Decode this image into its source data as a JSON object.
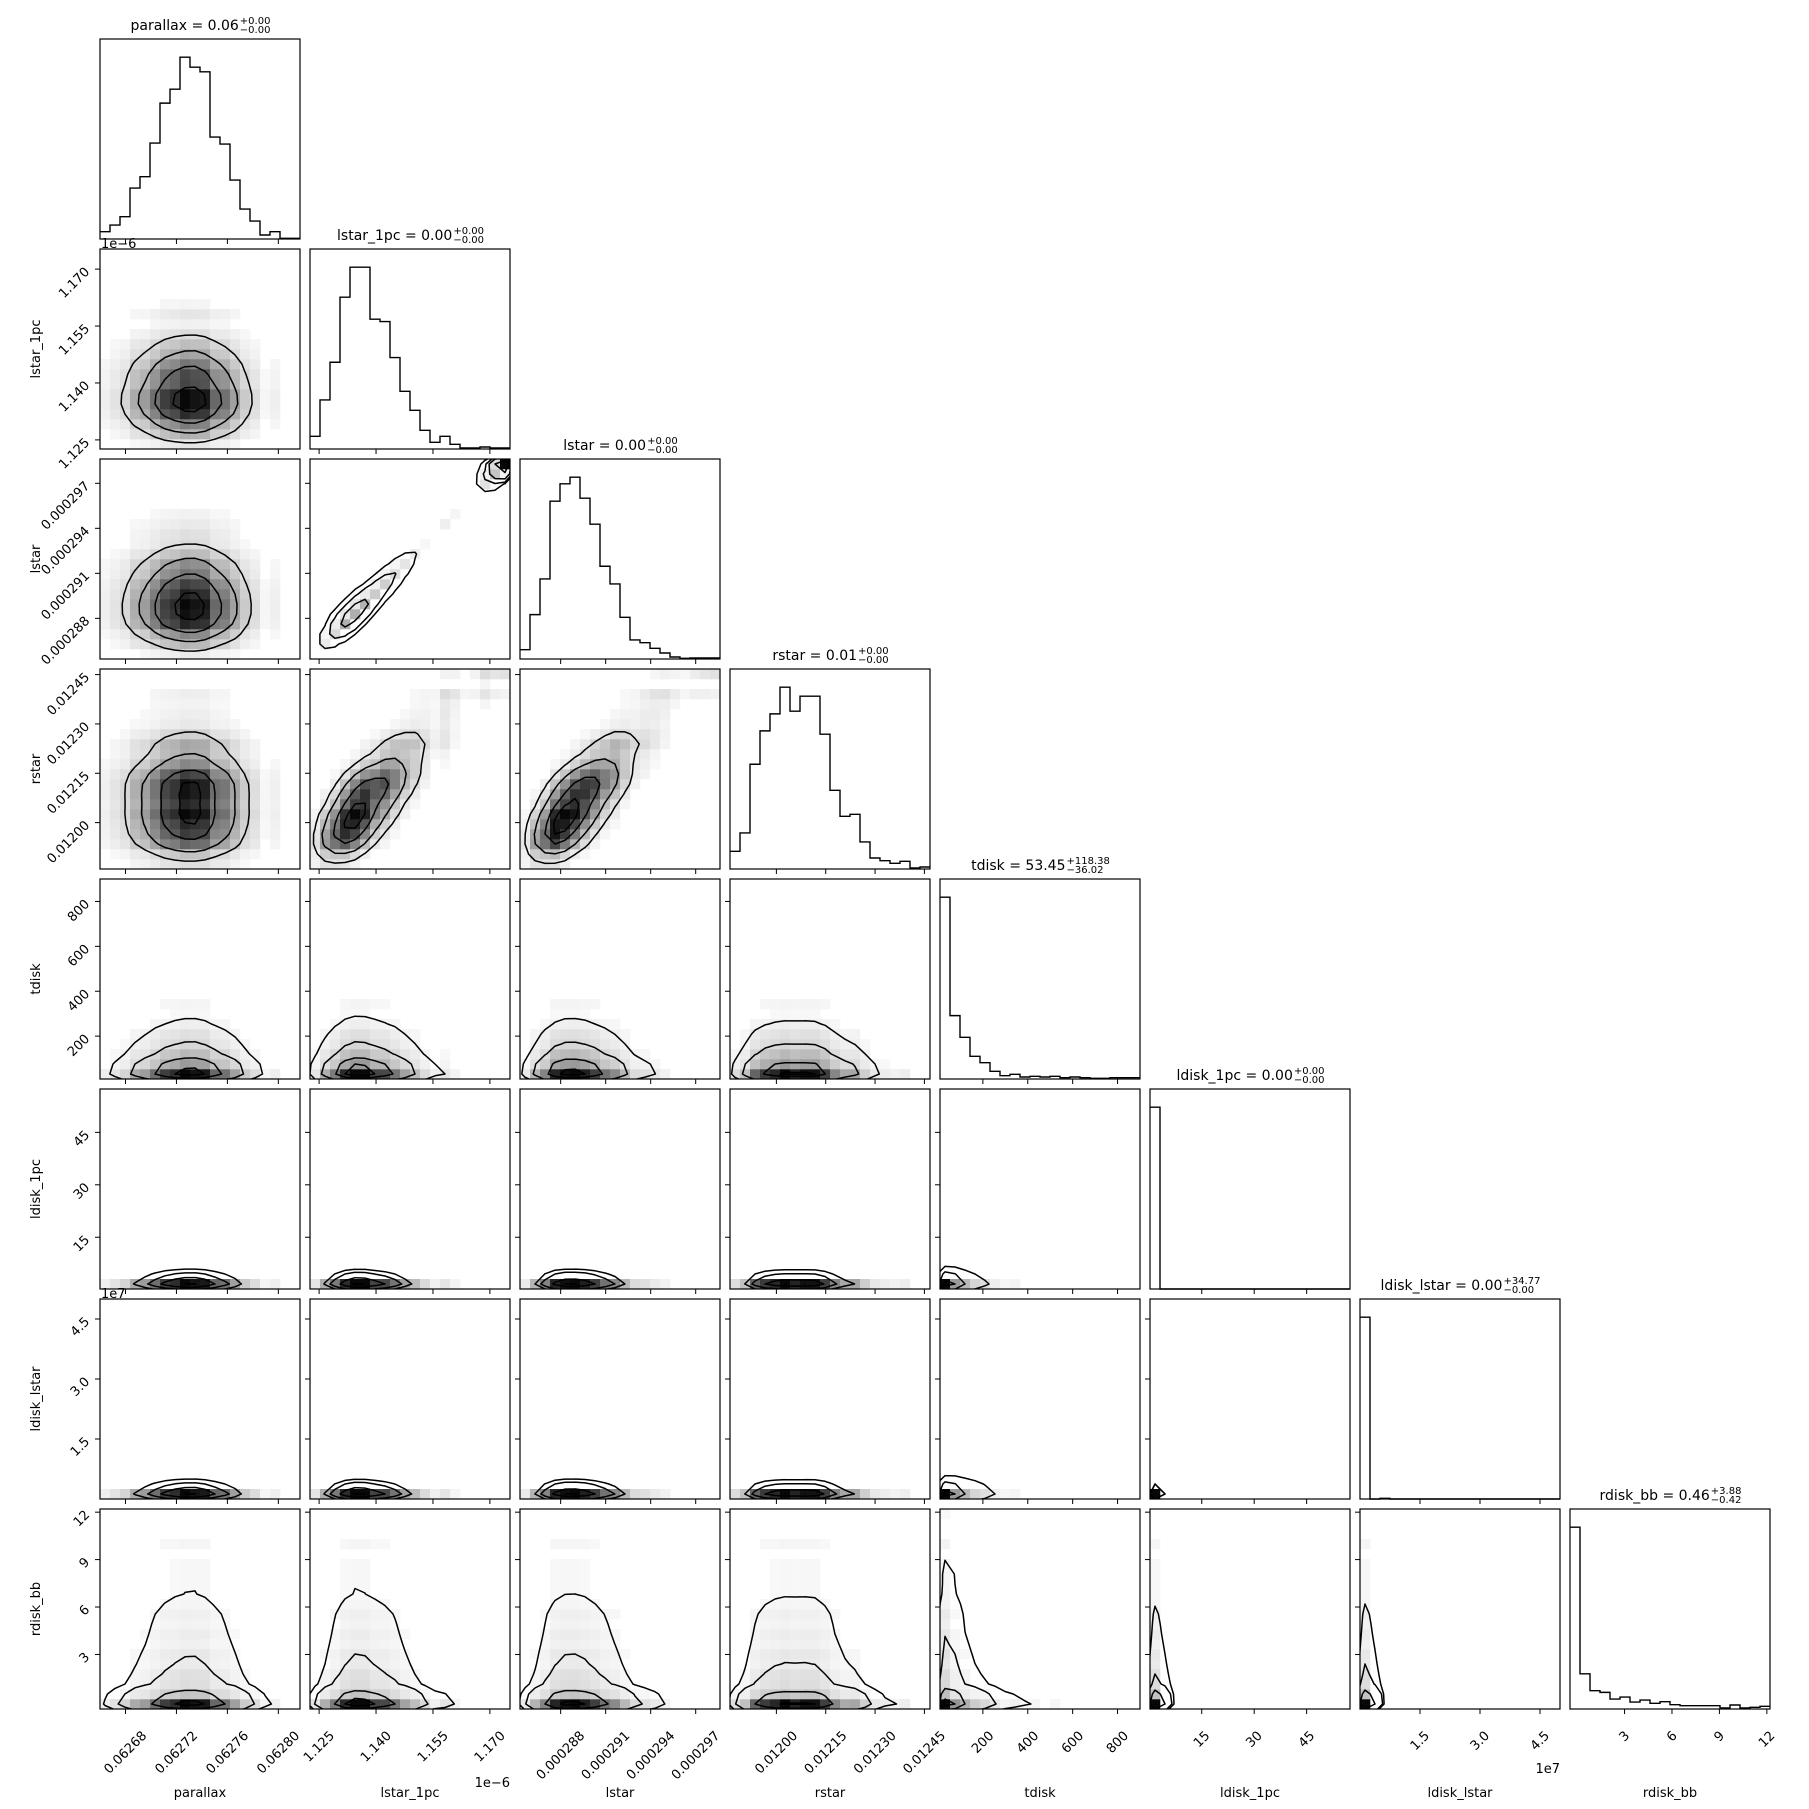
{
  "chart_data": {
    "type": "corner",
    "title": "",
    "grid": false,
    "contour_levels_sigma": [
      0.5,
      1.0,
      1.5,
      2.0
    ],
    "params": [
      {
        "name": "parallax",
        "label": "parallax",
        "title": "parallax = 0.06",
        "err_plus": "+0.00",
        "err_minus": "−0.00",
        "range": [
          0.06266,
          0.062817
        ],
        "ticks": [
          0.06268,
          0.06272,
          0.06276,
          0.0628
        ],
        "ticklabels": [
          "0.06268",
          "0.06272",
          "0.06276",
          "0.06280"
        ],
        "hist": [
          22,
          42,
          67,
          153,
          187,
          288,
          408,
          450,
          546,
          516,
          502,
          306,
          285,
          177,
          90,
          54,
          12,
          22,
          2,
          2
        ]
      },
      {
        "name": "lstar_1pc",
        "label": "lstar_1pc",
        "title": "lstar_1pc = 0.00",
        "err_plus": "+0.00",
        "err_minus": "−0.00",
        "range": [
          1.1226,
          1.1753
        ],
        "ticks": [
          1.125,
          1.14,
          1.155,
          1.17
        ],
        "ticklabels": [
          "1.125",
          "1.140",
          "1.155",
          "1.170"
        ],
        "offset": "1e−6",
        "hist": [
          38,
          147,
          260,
          455,
          545,
          545,
          389,
          382,
          274,
          173,
          116,
          56,
          20,
          38,
          14,
          3,
          3,
          6,
          3,
          3
        ]
      },
      {
        "name": "lstar",
        "label": "lstar",
        "title": "lstar = 0.00",
        "err_plus": "+0.00",
        "err_minus": "−0.00",
        "range": [
          0.00028529,
          0.00029862
        ],
        "ticks": [
          0.000288,
          0.000291,
          0.000294,
          0.000297
        ],
        "ticklabels": [
          "0.000288",
          "0.000291",
          "0.000294",
          "0.000297"
        ],
        "hist": [
          28,
          133,
          240,
          473,
          525,
          545,
          482,
          404,
          278,
          225,
          125,
          57,
          49,
          32,
          18,
          6,
          2,
          3,
          3,
          3
        ]
      },
      {
        "name": "rstar",
        "label": "rstar",
        "title": "rstar = 0.01",
        "err_plus": "+0.00",
        "err_minus": "−0.00",
        "range": [
          0.011859,
          0.012467
        ],
        "ticks": [
          0.012,
          0.01215,
          0.0123,
          0.01245
        ],
        "ticklabels": [
          "0.01200",
          "0.01215",
          "0.01230",
          "0.01245"
        ],
        "hist": [
          53,
          108,
          314,
          414,
          465,
          545,
          473,
          518,
          518,
          404,
          236,
          158,
          164,
          81,
          33,
          25,
          17,
          23,
          3,
          6
        ]
      },
      {
        "name": "tdisk",
        "label": "tdisk",
        "title": "tdisk = 53.45",
        "err_plus": "+118.38",
        "err_minus": "−36.02",
        "range": [
          9,
          900
        ],
        "ticks": [
          200,
          400,
          600,
          800
        ],
        "ticklabels": [
          "200",
          "400",
          "600",
          "800"
        ],
        "hist": [
          545,
          190,
          125,
          68,
          49,
          23,
          10,
          14,
          6,
          8,
          6,
          8,
          4,
          6,
          4,
          2,
          2,
          4,
          4,
          4
        ]
      },
      {
        "name": "ldisk_1pc",
        "label": "ldisk_1pc",
        "title": "ldisk_1pc = 0.00",
        "err_plus": "+0.00",
        "err_minus": "−0.00",
        "range": [
          0.2,
          57.4
        ],
        "ticks": [
          15,
          30,
          45
        ],
        "ticklabels": [
          "15",
          "30",
          "45"
        ],
        "hist": [
          545,
          0,
          0,
          0,
          0,
          0,
          0,
          0,
          0,
          0,
          0,
          0,
          0,
          0,
          0,
          0,
          0,
          0,
          0,
          0
        ]
      },
      {
        "name": "ldisk_lstar",
        "label": "ldisk_lstar",
        "title": "ldisk_lstar = 0.00",
        "err_plus": "+34.77",
        "err_minus": "−0.00",
        "range": [
          0.0,
          5.0
        ],
        "ticks": [
          1.5,
          3.0,
          4.5
        ],
        "ticklabels": [
          "1.5",
          "3.0",
          "4.5"
        ],
        "offset": "1e7",
        "hist": [
          545,
          0,
          2,
          0,
          0,
          0,
          0,
          0,
          0,
          0,
          0,
          0,
          0,
          0,
          0,
          0,
          0,
          0,
          0,
          0
        ]
      },
      {
        "name": "rdisk_bb",
        "label": "rdisk_bb",
        "title": "rdisk_bb = 0.46",
        "err_plus": "+3.88",
        "err_minus": "−0.42",
        "range": [
          -0.45,
          12.2
        ],
        "ticks": [
          3,
          6,
          9,
          12
        ],
        "ticklabels": [
          "3",
          "6",
          "9",
          "12"
        ],
        "hist": [
          547,
          106,
          55,
          50,
          30,
          36,
          21,
          27,
          17,
          22,
          13,
          10,
          10,
          10,
          10,
          3,
          12,
          3,
          5,
          8
        ]
      }
    ],
    "correlations": [
      {
        "pair": [
          "lstar_1pc",
          "lstar"
        ],
        "rho": 0.985
      },
      {
        "pair": [
          "lstar_1pc",
          "rstar"
        ],
        "rho": 0.75
      },
      {
        "pair": [
          "lstar",
          "rstar"
        ],
        "rho": 0.75
      },
      {
        "pair": [
          "ldisk_1pc",
          "ldisk_lstar"
        ],
        "rho": 0.95
      },
      {
        "pair": [
          "tdisk",
          "rdisk_bb"
        ],
        "rho": -0.3
      }
    ]
  }
}
